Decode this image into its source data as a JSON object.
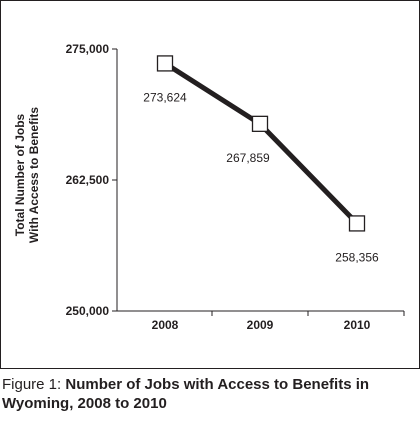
{
  "chart_data": {
    "type": "line",
    "x": [
      "2008",
      "2009",
      "2010"
    ],
    "values": [
      273624,
      267859,
      258356
    ],
    "data_labels": [
      "273,624",
      "267,859",
      "258,356"
    ],
    "ylabel_lines": [
      "Total Number of Jobs",
      "With Access to Benefits"
    ],
    "ylim": [
      250000,
      275000
    ],
    "yticks": [
      250000,
      262500,
      275000
    ],
    "ytick_labels": [
      "250,000",
      "262,500",
      "275,000"
    ],
    "grid": false,
    "line_color": "#231f20",
    "marker": "open-square"
  },
  "caption": {
    "prefix": "Figure 1: ",
    "title": "Number of Jobs with Access to Benefits in Wyoming, 2008 to 2010",
    "prefix_color": "#231f20"
  }
}
